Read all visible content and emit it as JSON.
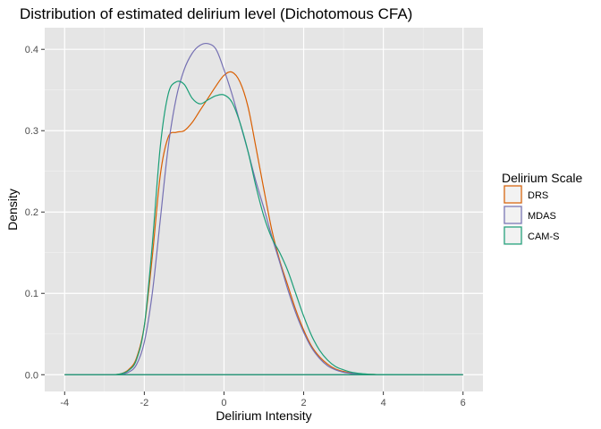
{
  "chart_data": {
    "type": "area",
    "title": "Distribution of estimated delirium level (Dichotomous CFA)",
    "xlabel": "Delirium Intensity",
    "ylabel": "Density",
    "xlim": [
      -4.5,
      6.5
    ],
    "ylim": [
      -0.0206,
      0.4266
    ],
    "x_ticks": [
      -4,
      -2,
      0,
      2,
      4,
      6
    ],
    "x_tick_labels": [
      "-4",
      "-2",
      "0",
      "2",
      "4",
      "6"
    ],
    "y_ticks": [
      0.0,
      0.1,
      0.2,
      0.3,
      0.4
    ],
    "y_tick_labels": [
      "0.0",
      "0.1",
      "0.2",
      "0.3",
      "0.4"
    ],
    "grid": true,
    "background": "#e5e5e5",
    "legend": {
      "title": "Delirium Scale",
      "placement": "right"
    },
    "x": [
      -4.0,
      -3.0,
      -2.8,
      -2.6,
      -2.4,
      -2.2,
      -2.0,
      -1.8,
      -1.6,
      -1.4,
      -1.2,
      -1.0,
      -0.8,
      -0.6,
      -0.4,
      -0.2,
      0.0,
      0.2,
      0.4,
      0.6,
      0.8,
      1.0,
      1.2,
      1.4,
      1.6,
      1.8,
      2.0,
      2.2,
      2.4,
      2.6,
      2.8,
      3.0,
      3.2,
      3.4,
      3.6,
      3.8,
      4.0,
      6.0
    ],
    "series": [
      {
        "name": "DRS",
        "color": "#d95f02",
        "values": [
          0,
          0.0,
          0.0,
          0.001,
          0.006,
          0.02,
          0.06,
          0.145,
          0.245,
          0.292,
          0.298,
          0.3,
          0.31,
          0.325,
          0.34,
          0.355,
          0.368,
          0.372,
          0.36,
          0.33,
          0.28,
          0.228,
          0.178,
          0.14,
          0.11,
          0.08,
          0.055,
          0.035,
          0.022,
          0.013,
          0.007,
          0.004,
          0.002,
          0.001,
          0.0005,
          0.0002,
          0.0,
          0
        ]
      },
      {
        "name": "MDAS",
        "color": "#7570b3",
        "values": [
          0,
          0.0,
          0.0,
          0.0005,
          0.003,
          0.012,
          0.04,
          0.1,
          0.19,
          0.28,
          0.34,
          0.375,
          0.395,
          0.405,
          0.407,
          0.4,
          0.375,
          0.345,
          0.31,
          0.275,
          0.238,
          0.205,
          0.17,
          0.138,
          0.105,
          0.076,
          0.052,
          0.033,
          0.02,
          0.011,
          0.006,
          0.003,
          0.0015,
          0.0007,
          0.0003,
          0.0001,
          0.0,
          0
        ]
      },
      {
        "name": "CAM-S",
        "color": "#1b9e77",
        "values": [
          0,
          0.0,
          0.0,
          0.001,
          0.005,
          0.018,
          0.06,
          0.16,
          0.28,
          0.345,
          0.36,
          0.357,
          0.34,
          0.333,
          0.338,
          0.343,
          0.344,
          0.335,
          0.31,
          0.275,
          0.232,
          0.195,
          0.168,
          0.15,
          0.128,
          0.1,
          0.072,
          0.048,
          0.03,
          0.018,
          0.01,
          0.006,
          0.003,
          0.0015,
          0.0007,
          0.0003,
          0.0001,
          0
        ]
      }
    ]
  }
}
